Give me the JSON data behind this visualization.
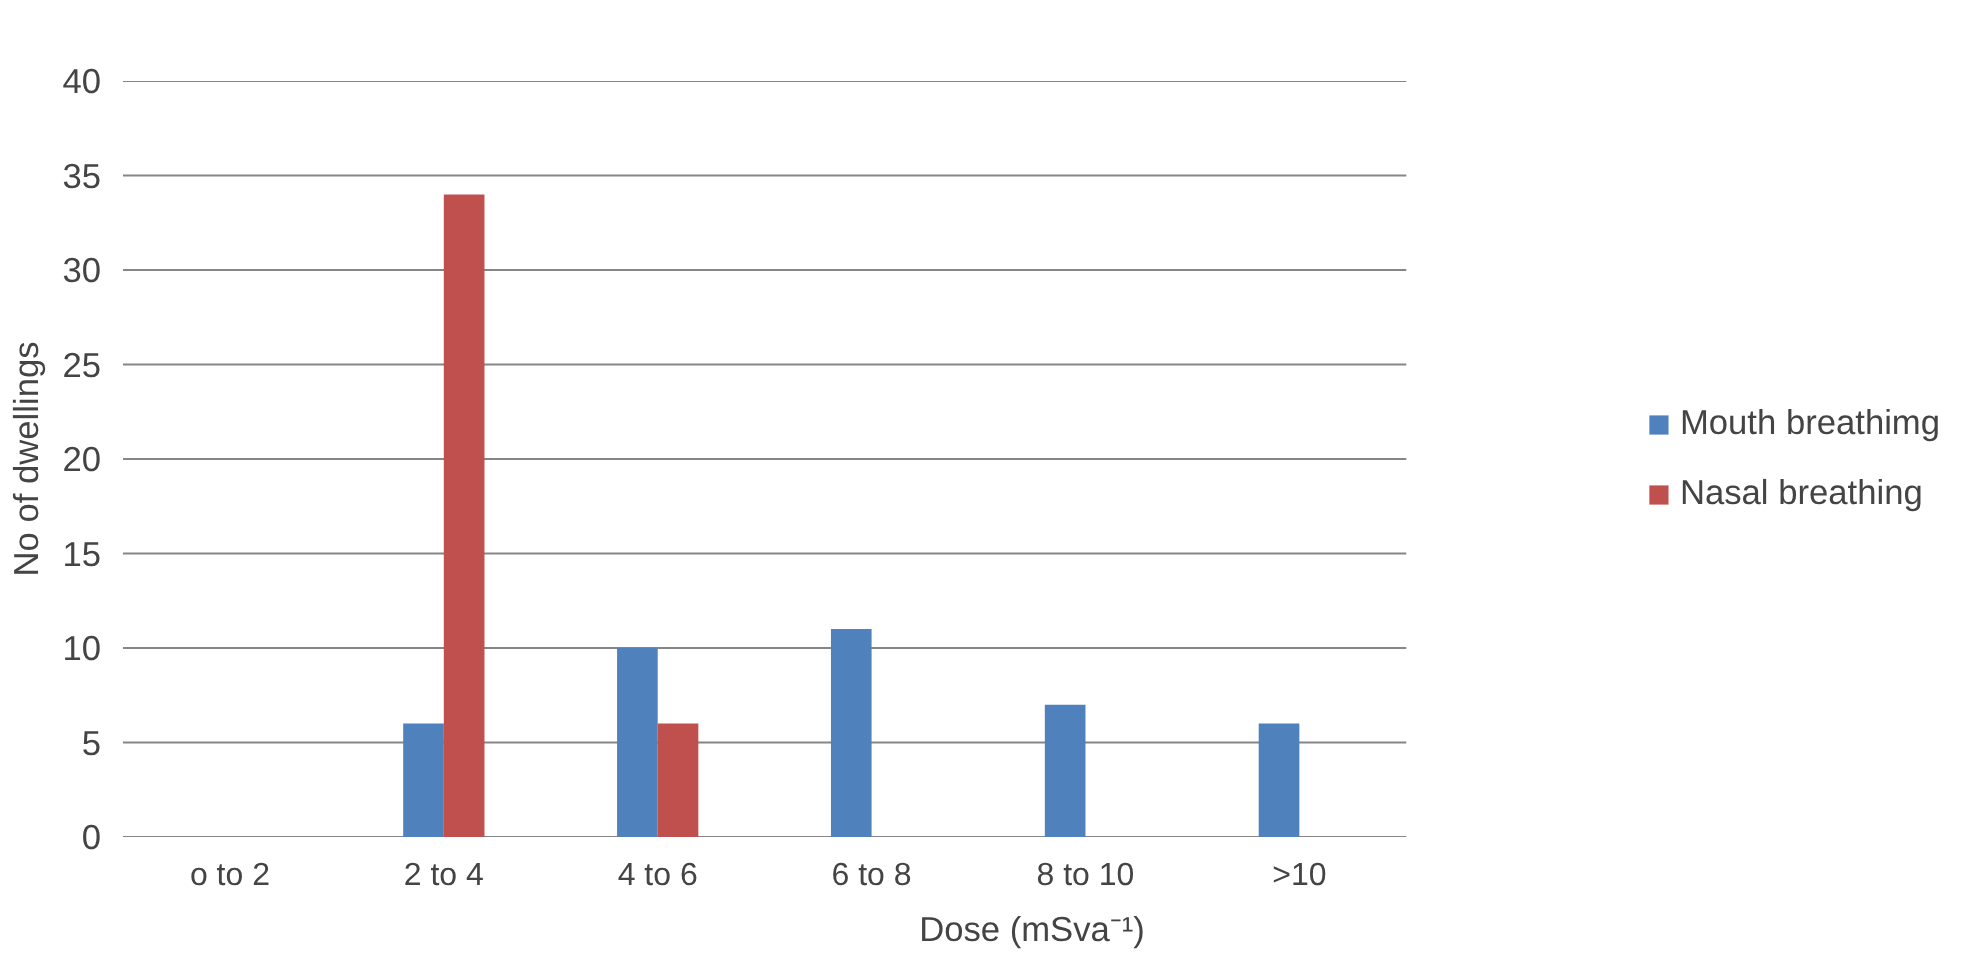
{
  "chart_data": {
    "type": "bar",
    "xlabel": "Dose (mSva⁻¹)",
    "ylabel": "No of dwellings",
    "categories": [
      "o to 2",
      "2 to 4",
      "4 to 6",
      "6 to 8",
      "8 to 10",
      ">10"
    ],
    "series": [
      {
        "name": "Mouth breathimg",
        "color": "#4f81bd",
        "values": [
          0,
          6,
          10,
          11,
          7,
          6
        ]
      },
      {
        "name": "Nasal breathing",
        "color": "#c0504d",
        "values": [
          0,
          34,
          6,
          0,
          0,
          0
        ]
      }
    ],
    "ylim": [
      0,
      40
    ],
    "yticks": [
      0,
      5,
      10,
      15,
      20,
      25,
      30,
      35,
      40
    ],
    "grid": "y",
    "legend": "right"
  }
}
